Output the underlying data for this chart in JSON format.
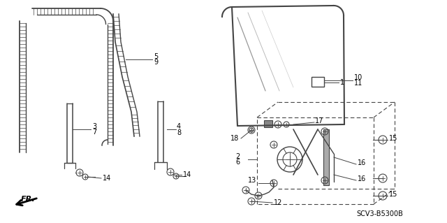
{
  "bg_color": "#ffffff",
  "line_color": "#444444",
  "text_color": "#000000",
  "diagram_code": "SCV3-B5300B",
  "figsize": [
    6.4,
    3.19
  ],
  "dpi": 100
}
